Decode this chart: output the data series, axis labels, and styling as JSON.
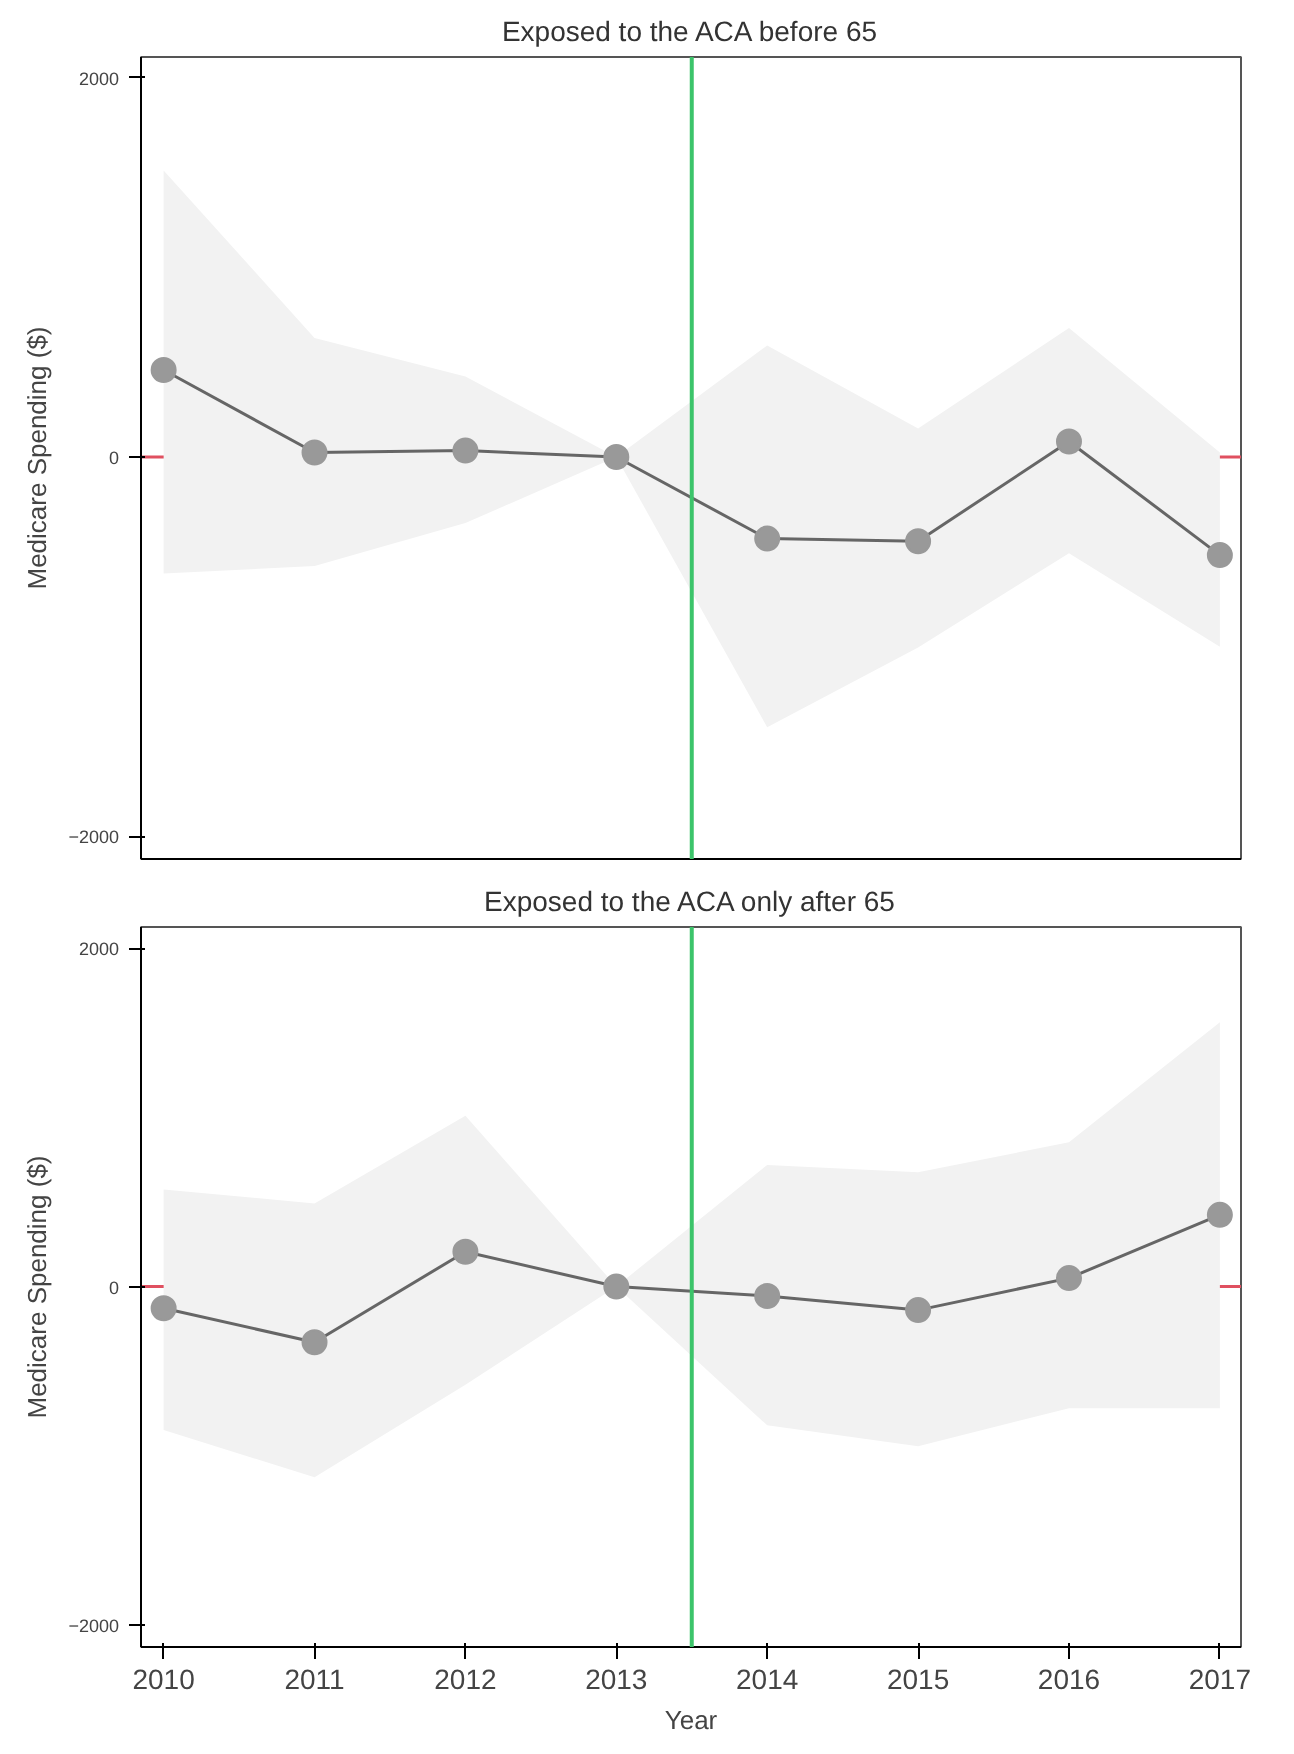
{
  "chart_data": [
    {
      "type": "line",
      "title": "Exposed to the ACA before 65",
      "ylabel": "Medicare Spending ($)",
      "x": [
        2010,
        2011,
        2012,
        2013,
        2014,
        2015,
        2016,
        2017
      ],
      "xlim": [
        2009.85,
        2017.14
      ],
      "xticks": [
        2010,
        2011,
        2012,
        2013,
        2014,
        2015,
        2016,
        2017
      ],
      "ylim": [
        -2120,
        2110
      ],
      "yticks": [
        -2000,
        0,
        2000
      ],
      "tick_labels": "y",
      "grid": false,
      "marker": "circle",
      "line_style": "solid",
      "series": [
        {
          "color": "#999999",
          "values": [
            459,
            24,
            34,
            0,
            -430,
            -444,
            82,
            -517
          ],
          "upper": [
            1512,
            628,
            425,
            0,
            589,
            150,
            681,
            24
          ],
          "lower": [
            -614,
            -575,
            -348,
            0,
            -1425,
            -1005,
            -507,
            -1000
          ]
        }
      ],
      "ref_lines": [
        {
          "axis": "x",
          "value": 2013.5,
          "color": "#3cc46a"
        },
        {
          "axis": "y",
          "value": 0,
          "color": "#e05060"
        }
      ]
    },
    {
      "type": "line",
      "title": "Exposed to the ACA only after 65",
      "xlabel": "Year",
      "ylabel": "Medicare Spending ($)",
      "x": [
        2010,
        2011,
        2012,
        2013,
        2014,
        2015,
        2016,
        2017
      ],
      "xlim": [
        2009.85,
        2017.14
      ],
      "xticks": [
        2010,
        2011,
        2012,
        2013,
        2014,
        2015,
        2016,
        2017
      ],
      "ylim": [
        -2130,
        2125
      ],
      "yticks": [
        -2000,
        0,
        2000
      ],
      "grid": false,
      "marker": "circle",
      "line_style": "solid",
      "series": [
        {
          "color": "#999999",
          "values": [
            -128,
            -329,
            206,
            0,
            -56,
            -139,
            50,
            424
          ],
          "upper": [
            574,
            491,
            1009,
            0,
            719,
            675,
            853,
            1562
          ],
          "lower": [
            -848,
            -1127,
            -580,
            0,
            -820,
            -943,
            -719,
            -719
          ]
        }
      ],
      "ref_lines": [
        {
          "axis": "x",
          "value": 2013.5,
          "color": "#3cc46a"
        },
        {
          "axis": "y",
          "value": 0,
          "color": "#e05060"
        }
      ]
    }
  ]
}
